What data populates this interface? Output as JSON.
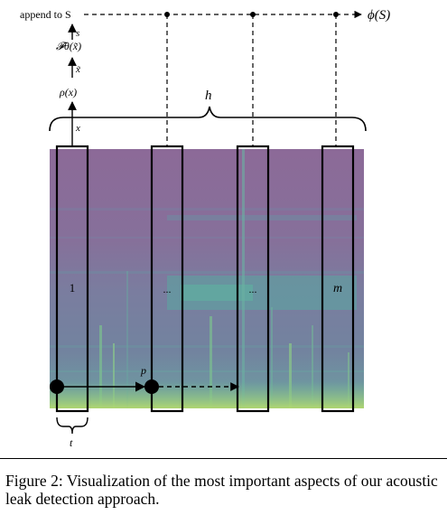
{
  "diagram": {
    "top_flow": {
      "append_label": "append to S",
      "output_label": "ϕ(S)"
    },
    "pipeline": {
      "s_label": "s",
      "model_label": "𝓕θ(x̃)",
      "xtilde_label": "x̃",
      "rho_label": "ρ(x)",
      "x_label": "x"
    },
    "brace_label": "h",
    "windows": [
      {
        "label": "1"
      },
      {
        "label": "..."
      },
      {
        "label": "..."
      },
      {
        "label": "m"
      }
    ],
    "stride_label": "p",
    "window_length_label": "t"
  },
  "caption": {
    "text": "Figure 2: Visualization of the most important aspects of our acoustic leak detection approach."
  },
  "colors": {
    "spectrogram_base": "#8b6a97",
    "spectrogram_band": "#5fa7a0",
    "spectrogram_bottom": "#b6d86a"
  }
}
